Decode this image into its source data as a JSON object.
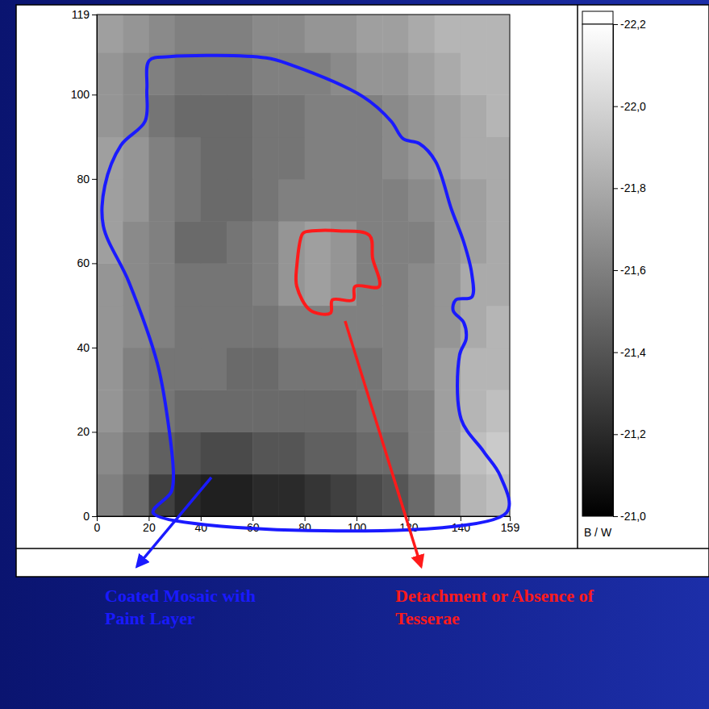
{
  "chart_data": {
    "type": "heatmap",
    "xlim": [
      0,
      159
    ],
    "xticks": [
      0,
      20,
      40,
      60,
      80,
      100,
      120,
      140,
      159
    ],
    "ylim": [
      0,
      119
    ],
    "yticks": [
      0,
      20,
      40,
      60,
      80,
      100,
      119
    ],
    "x_edges": [
      0,
      10,
      20,
      30,
      40,
      50,
      60,
      70,
      80,
      90,
      100,
      110,
      120,
      130,
      140,
      150,
      159
    ],
    "y_edges": [
      0,
      10,
      20,
      30,
      40,
      50,
      60,
      70,
      80,
      90,
      100,
      110,
      119
    ],
    "cells": [
      [
        -21.6,
        -21.5,
        -21.3,
        -21.2,
        -21.15,
        -21.15,
        -21.2,
        -21.2,
        -21.25,
        -21.3,
        -21.35,
        -21.4,
        -21.5,
        -21.65,
        -21.85,
        -21.9
      ],
      [
        -21.65,
        -21.55,
        -21.45,
        -21.4,
        -21.35,
        -21.35,
        -21.4,
        -21.4,
        -21.45,
        -21.45,
        -21.5,
        -21.5,
        -21.6,
        -21.75,
        -21.9,
        -21.95
      ],
      [
        -21.7,
        -21.6,
        -21.55,
        -21.5,
        -21.5,
        -21.5,
        -21.5,
        -21.5,
        -21.5,
        -21.5,
        -21.55,
        -21.55,
        -21.6,
        -21.75,
        -21.85,
        -21.9
      ],
      [
        -21.7,
        -21.6,
        -21.55,
        -21.55,
        -21.55,
        -21.5,
        -21.5,
        -21.55,
        -21.55,
        -21.55,
        -21.55,
        -21.6,
        -21.65,
        -21.75,
        -21.85,
        -21.85
      ],
      [
        -21.7,
        -21.65,
        -21.6,
        -21.55,
        -21.55,
        -21.55,
        -21.55,
        -21.6,
        -21.6,
        -21.6,
        -21.6,
        -21.6,
        -21.65,
        -21.7,
        -21.8,
        -21.85
      ],
      [
        -21.7,
        -21.65,
        -21.6,
        -21.55,
        -21.55,
        -21.55,
        -21.6,
        -21.7,
        -21.75,
        -21.7,
        -21.6,
        -21.6,
        -21.65,
        -21.7,
        -21.8,
        -21.8
      ],
      [
        -21.75,
        -21.65,
        -21.6,
        -21.5,
        -21.5,
        -21.55,
        -21.6,
        -21.7,
        -21.75,
        -21.7,
        -21.6,
        -21.6,
        -21.6,
        -21.7,
        -21.75,
        -21.8
      ],
      [
        -21.75,
        -21.7,
        -21.6,
        -21.55,
        -21.5,
        -21.5,
        -21.55,
        -21.6,
        -21.6,
        -21.6,
        -21.6,
        -21.6,
        -21.65,
        -21.7,
        -21.75,
        -21.8
      ],
      [
        -21.75,
        -21.7,
        -21.6,
        -21.55,
        -21.5,
        -21.5,
        -21.55,
        -21.55,
        -21.6,
        -21.6,
        -21.6,
        -21.65,
        -21.7,
        -21.75,
        -21.8,
        -21.8
      ],
      [
        -21.7,
        -21.65,
        -21.55,
        -21.5,
        -21.5,
        -21.5,
        -21.55,
        -21.55,
        -21.6,
        -21.6,
        -21.6,
        -21.65,
        -21.7,
        -21.75,
        -21.8,
        -21.85
      ],
      [
        -21.7,
        -21.65,
        -21.6,
        -21.55,
        -21.55,
        -21.55,
        -21.6,
        -21.6,
        -21.6,
        -21.65,
        -21.7,
        -21.7,
        -21.75,
        -21.8,
        -21.85,
        -21.85
      ],
      [
        -21.75,
        -21.7,
        -21.65,
        -21.6,
        -21.6,
        -21.6,
        -21.65,
        -21.65,
        -21.7,
        -21.7,
        -21.75,
        -21.75,
        -21.8,
        -21.85,
        -21.85,
        -21.85
      ]
    ],
    "colorbar": {
      "range": [
        -21.0,
        -22.2
      ],
      "ticks": [
        {
          "value": -22.2,
          "label": "-22,2"
        },
        {
          "value": -22.0,
          "label": "-22,0"
        },
        {
          "value": -21.8,
          "label": "-21,8"
        },
        {
          "value": -21.6,
          "label": "-21,6"
        },
        {
          "value": -21.4,
          "label": "-21,4"
        },
        {
          "value": -21.2,
          "label": "-21,2"
        },
        {
          "value": -21.0,
          "label": "-21,0"
        }
      ],
      "label": "B / W"
    },
    "annotations": [
      {
        "text": "Coated Mosaic with Paint Layer",
        "color": "#1a1aff"
      },
      {
        "text": "Detachment or Absence of Tesserae",
        "color": "#ff1a1a"
      }
    ]
  }
}
